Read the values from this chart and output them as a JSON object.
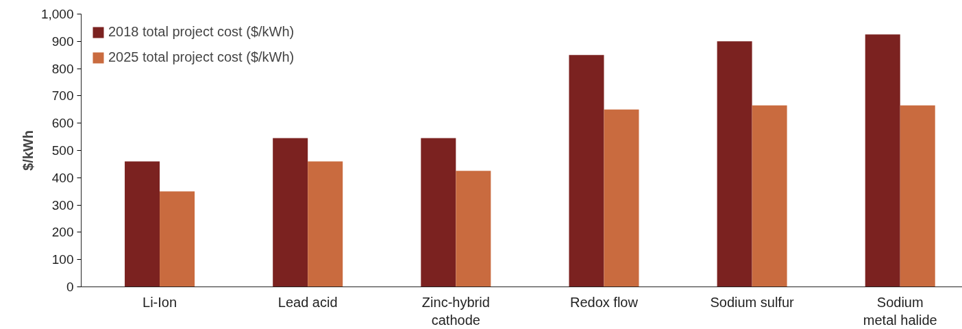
{
  "chart_data": {
    "type": "bar",
    "ylabel": "$/kWh",
    "categories": [
      "Li-Ion",
      "Lead acid",
      "Zinc-hybrid cathode",
      "Redox flow",
      "Sodium sulfur",
      "Sodium metal halide"
    ],
    "series": [
      {
        "name": "2018 total project cost ($/kWh)",
        "color": "#7b2220",
        "values": [
          460,
          545,
          545,
          850,
          900,
          925
        ]
      },
      {
        "name": "2025 total project cost ($/kWh)",
        "color": "#c96b3f",
        "values": [
          350,
          460,
          425,
          650,
          665,
          665
        ]
      }
    ],
    "ylim": [
      0,
      1000
    ],
    "yticks": [
      0,
      {
        "value": 100,
        "label": "100"
      },
      200,
      300,
      400,
      500,
      600,
      700,
      800,
      900,
      {
        "value": 1000,
        "label": "1,000"
      }
    ],
    "grid": false,
    "legend": "top left"
  }
}
